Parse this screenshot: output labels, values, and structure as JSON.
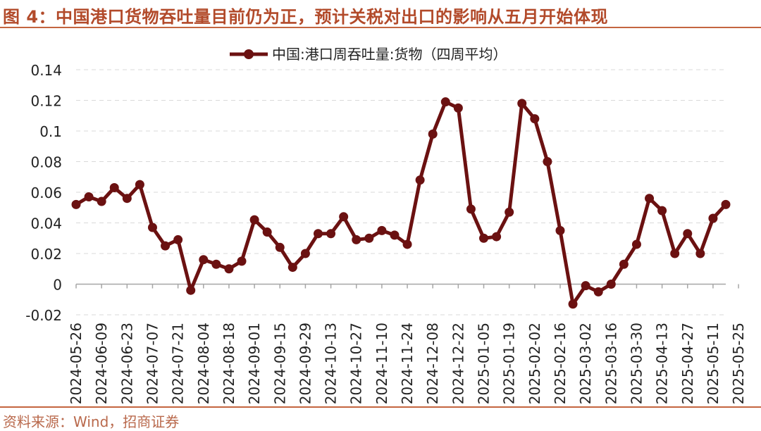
{
  "figure_title": "图 4：中国港口货物吞吐量目前仍为正，预计关税对出口的影响从五月开始体现",
  "source": "资料来源：Wind，招商证券",
  "colors": {
    "series": "#6b1111",
    "accent": "#c4653f",
    "title": "#b24a2a",
    "grid": "#d9d9d9"
  },
  "chart_data": {
    "type": "line",
    "series": [
      {
        "name": "中国:港口周吞吐量:货物（四周平均）",
        "values": [
          0.052,
          0.057,
          0.054,
          0.063,
          0.056,
          0.065,
          0.037,
          0.025,
          0.029,
          -0.004,
          0.016,
          0.013,
          0.01,
          0.015,
          0.042,
          0.034,
          0.024,
          0.011,
          0.02,
          0.033,
          0.033,
          0.044,
          0.029,
          0.03,
          0.035,
          0.032,
          0.026,
          0.068,
          0.098,
          0.119,
          0.115,
          0.049,
          0.03,
          0.031,
          0.047,
          0.118,
          0.108,
          0.08,
          0.035,
          -0.013,
          -0.001,
          -0.005,
          0.0,
          0.013,
          0.026,
          0.056,
          0.048,
          0.02,
          0.033,
          0.02,
          0.043,
          0.052
        ]
      }
    ],
    "x_ticks": [
      "2024-05-26",
      "2024-06-09",
      "2024-06-23",
      "2024-07-07",
      "2024-07-21",
      "2024-08-04",
      "2024-08-18",
      "2024-09-01",
      "2024-09-15",
      "2024-09-29",
      "2024-10-13",
      "2024-10-27",
      "2024-11-10",
      "2024-11-24",
      "2024-12-08",
      "2024-12-22",
      "2025-01-05",
      "2025-01-19",
      "2025-02-02",
      "2025-02-16",
      "2025-03-02",
      "2025-03-16",
      "2025-03-30",
      "2025-04-13",
      "2025-04-27",
      "2025-05-11",
      "2025-05-25"
    ],
    "y_ticks": [
      "0.14",
      "0.12",
      "0.1",
      "0.08",
      "0.06",
      "0.04",
      "0.02",
      "0",
      "-0.02"
    ],
    "ylim": [
      -0.02,
      0.14
    ],
    "grid": true,
    "legend_position": "top-center"
  }
}
